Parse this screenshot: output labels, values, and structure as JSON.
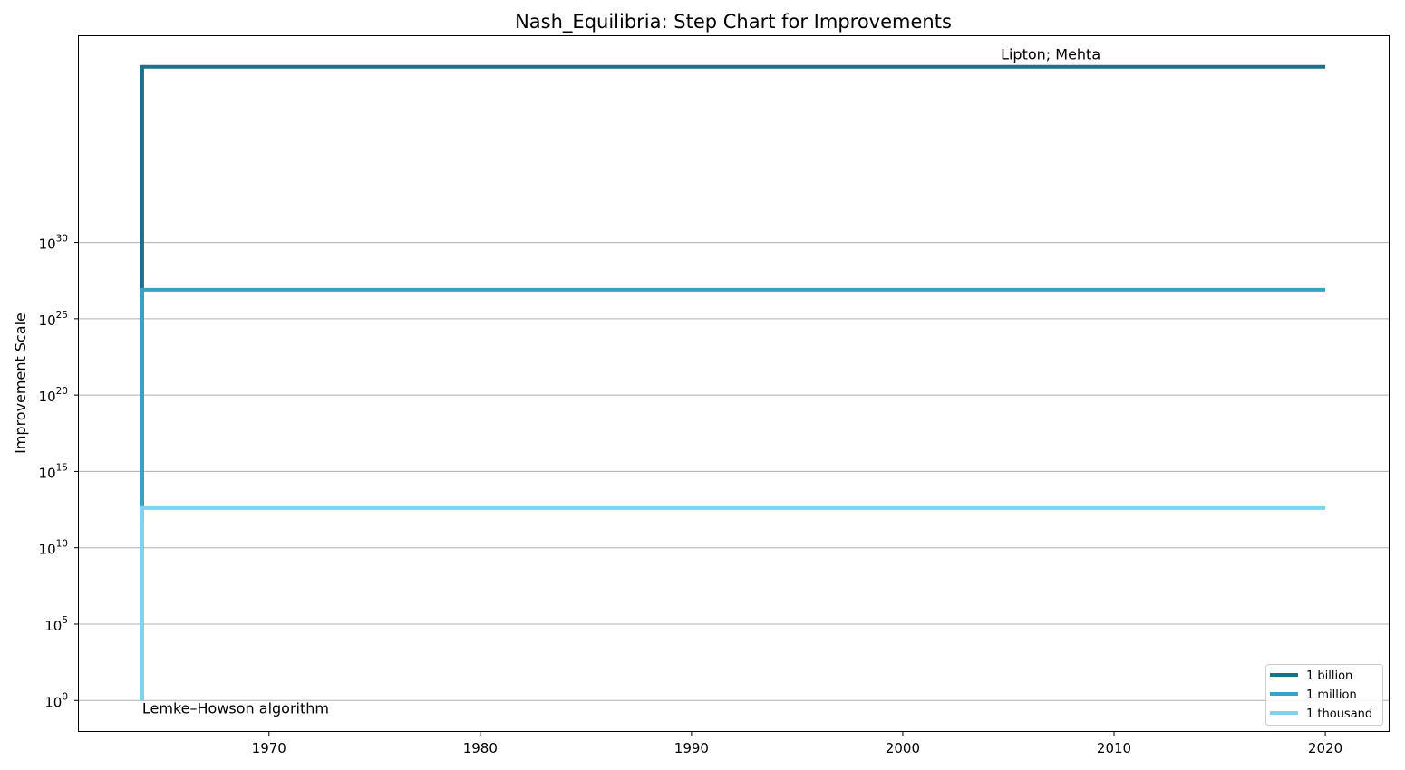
{
  "chart_data": {
    "type": "line",
    "step": true,
    "title": "Nash_Equilibria: Step Chart for Improvements",
    "xlabel": "",
    "ylabel": "Improvement Scale",
    "yscale": "log",
    "xlim": [
      1961,
      2023
    ],
    "ylim_exp": [
      -2,
      43.5
    ],
    "x_ticks": [
      1970,
      1980,
      1990,
      2000,
      2010,
      2020
    ],
    "y_tick_exponents": [
      0,
      5,
      10,
      15,
      20,
      25,
      30
    ],
    "y_tick_base": "10",
    "grid": "y-major",
    "legend_position": "lower right",
    "series": [
      {
        "name": "1 billion",
        "color": "#1a7090",
        "x": [
          1964,
          2020
        ],
        "y_exp": [
          12,
          41.5
        ]
      },
      {
        "name": "1 million",
        "color": "#35a2c6",
        "x": [
          1964,
          2020
        ],
        "y_exp": [
          0,
          26.9
        ]
      },
      {
        "name": "1 thousand",
        "color": "#7ed3f0",
        "x": [
          1964,
          2020
        ],
        "y_exp": [
          0,
          12.6
        ]
      }
    ],
    "annotations": [
      {
        "text": "Lemke–Howson algorithm",
        "x": 1964,
        "y_exp": 0
      },
      {
        "text": "Lipton; Mehta",
        "x": 2007,
        "y_exp": 41.5
      }
    ]
  }
}
